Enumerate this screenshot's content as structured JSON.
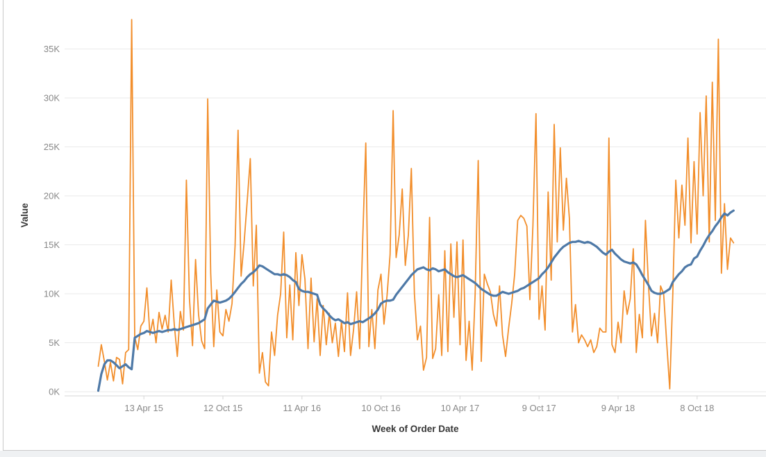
{
  "window": {
    "background": "#ffffff",
    "frame_border_color": "#c9c9c9",
    "footer_strip_color": "#eff1f3"
  },
  "chart_data": {
    "type": "line",
    "title": "",
    "xlabel": "Week of Order Date",
    "ylabel": "Value",
    "grid": "horizontal",
    "legend": "none",
    "gridline_color": "#eaeaea",
    "axis_line_color": "#d6d6d6",
    "tick_label_color": "#888888",
    "axis_title_color": "#363636",
    "ylim": [
      -0.45,
      38.6
    ],
    "x_unit": "week-index",
    "x_count": 210,
    "y_ticks": [
      {
        "value": 0,
        "label": "0K"
      },
      {
        "value": 5,
        "label": "5K"
      },
      {
        "value": 10,
        "label": "10K"
      },
      {
        "value": 15,
        "label": "15K"
      },
      {
        "value": 20,
        "label": "20K"
      },
      {
        "value": 25,
        "label": "25K"
      },
      {
        "value": 30,
        "label": "30K"
      },
      {
        "value": 35,
        "label": "35K"
      }
    ],
    "x_ticks": [
      {
        "week": 15,
        "label": "13 Apr 15"
      },
      {
        "week": 41,
        "label": "12 Oct 15"
      },
      {
        "week": 67,
        "label": "11 Apr 16"
      },
      {
        "week": 93,
        "label": "10 Oct 16"
      },
      {
        "week": 119,
        "label": "10 Apr 17"
      },
      {
        "week": 145,
        "label": "9 Oct 17"
      },
      {
        "week": 171,
        "label": "9 Apr 18"
      },
      {
        "week": 197,
        "label": "8 Oct 18"
      }
    ],
    "series": [
      {
        "name": "series-orange",
        "color": "#F28E2B",
        "stroke_width": 1.8,
        "values_k": [
          2.6,
          4.8,
          3.1,
          1.2,
          3.0,
          1.1,
          3.5,
          3.3,
          0.8,
          4.0,
          4.3,
          38.0,
          5.6,
          4.3,
          6.7,
          7.2,
          10.6,
          5.8,
          7.4,
          5.0,
          8.1,
          6.4,
          7.8,
          6.1,
          11.4,
          6.9,
          3.6,
          8.2,
          6.3,
          21.6,
          9.5,
          4.7,
          13.5,
          7.9,
          5.2,
          4.4,
          29.9,
          12.1,
          4.6,
          10.4,
          6.1,
          5.7,
          8.4,
          7.2,
          9.0,
          14.9,
          26.7,
          11.8,
          15.3,
          19.5,
          23.8,
          10.8,
          17.0,
          1.9,
          4.0,
          1.0,
          0.6,
          6.1,
          3.7,
          7.8,
          10.0,
          16.3,
          5.5,
          10.9,
          5.3,
          14.2,
          8.8,
          14.0,
          11.5,
          4.4,
          11.6,
          5.1,
          9.5,
          3.7,
          8.8,
          4.8,
          8.0,
          5.0,
          7.0,
          3.6,
          7.2,
          4.1,
          10.1,
          3.7,
          6.4,
          10.2,
          4.4,
          15.6,
          25.4,
          4.6,
          8.4,
          4.4,
          10.4,
          12.0,
          6.9,
          9.8,
          14.0,
          28.7,
          13.7,
          16.0,
          20.7,
          12.9,
          16.0,
          22.8,
          10.0,
          5.3,
          6.7,
          2.2,
          3.5,
          17.8,
          3.4,
          4.4,
          9.9,
          3.7,
          14.4,
          4.1,
          15.1,
          7.6,
          15.3,
          4.8,
          15.5,
          3.2,
          7.2,
          2.2,
          10.0,
          23.6,
          3.1,
          12.0,
          11.0,
          10.2,
          7.9,
          6.7,
          10.8,
          5.8,
          3.6,
          6.5,
          9.0,
          12.0,
          17.5,
          18.0,
          17.7,
          16.9,
          9.4,
          17.0,
          28.4,
          7.4,
          10.8,
          6.3,
          20.4,
          11.4,
          27.3,
          15.3,
          24.9,
          16.5,
          21.8,
          17.7,
          6.1,
          8.9,
          5.0,
          5.8,
          5.3,
          4.6,
          5.3,
          4.0,
          4.6,
          6.5,
          6.1,
          6.1,
          25.9,
          4.8,
          4.0,
          7.1,
          5.0,
          10.3,
          7.9,
          9.5,
          14.6,
          4.0,
          7.9,
          5.5,
          17.5,
          11.0,
          5.7,
          8.0,
          5.0,
          10.8,
          10.0,
          5.0,
          0.3,
          10.0,
          21.6,
          15.7,
          21.1,
          17.0,
          25.9,
          15.2,
          23.5,
          16.1,
          28.5,
          20.0,
          30.2,
          15.3,
          31.6,
          17.5,
          36.0,
          12.1,
          19.2,
          12.5,
          15.7,
          15.2
        ]
      },
      {
        "name": "series-blue",
        "color": "#4E79A7",
        "stroke_width": 3.2,
        "values_k": [
          0.1,
          1.8,
          2.8,
          3.2,
          3.2,
          3.0,
          2.7,
          2.4,
          2.6,
          2.8,
          2.5,
          2.3,
          5.5,
          5.7,
          5.9,
          6.0,
          6.2,
          6.1,
          6.0,
          6.1,
          6.2,
          6.1,
          6.2,
          6.3,
          6.3,
          6.4,
          6.3,
          6.4,
          6.5,
          6.6,
          6.7,
          6.8,
          6.9,
          7.0,
          7.2,
          7.4,
          8.5,
          8.9,
          9.3,
          9.2,
          9.1,
          9.2,
          9.3,
          9.5,
          9.8,
          10.2,
          10.6,
          11.0,
          11.3,
          11.7,
          12.0,
          12.2,
          12.5,
          12.9,
          12.8,
          12.6,
          12.4,
          12.2,
          12.0,
          12.0,
          11.9,
          12.0,
          11.9,
          11.7,
          11.4,
          11.2,
          10.5,
          10.3,
          10.2,
          10.2,
          10.1,
          10.0,
          9.9,
          8.9,
          8.5,
          8.2,
          7.8,
          7.5,
          7.3,
          7.4,
          7.2,
          7.0,
          7.1,
          6.9,
          7.0,
          7.1,
          7.2,
          7.1,
          7.3,
          7.5,
          7.7,
          8.0,
          8.4,
          9.0,
          9.2,
          9.3,
          9.3,
          9.4,
          9.9,
          10.3,
          10.7,
          11.1,
          11.5,
          11.9,
          12.2,
          12.5,
          12.6,
          12.7,
          12.5,
          12.4,
          12.6,
          12.5,
          12.3,
          12.4,
          12.5,
          12.2,
          12.0,
          11.8,
          11.7,
          11.8,
          11.9,
          11.7,
          11.5,
          11.3,
          11.1,
          10.8,
          10.5,
          10.3,
          10.1,
          9.9,
          9.8,
          9.8,
          10.0,
          10.2,
          10.1,
          10.0,
          10.1,
          10.2,
          10.3,
          10.5,
          10.6,
          10.8,
          11.0,
          11.2,
          11.4,
          11.6,
          12.0,
          12.3,
          12.7,
          13.2,
          13.7,
          14.1,
          14.5,
          14.8,
          15.0,
          15.2,
          15.3,
          15.3,
          15.4,
          15.3,
          15.2,
          15.3,
          15.2,
          15.0,
          14.8,
          14.5,
          14.2,
          14.0,
          14.3,
          14.5,
          14.1,
          13.8,
          13.5,
          13.3,
          13.2,
          13.1,
          13.2,
          13.0,
          12.5,
          11.9,
          11.4,
          10.9,
          10.3,
          10.1,
          10.0,
          10.0,
          10.1,
          10.3,
          10.5,
          11.2,
          11.6,
          12.0,
          12.3,
          12.7,
          12.9,
          13.0,
          13.6,
          13.8,
          14.4,
          14.9,
          15.5,
          16.0,
          16.4,
          16.9,
          17.3,
          17.8,
          18.2,
          18.0,
          18.3,
          18.5
        ]
      }
    ]
  }
}
